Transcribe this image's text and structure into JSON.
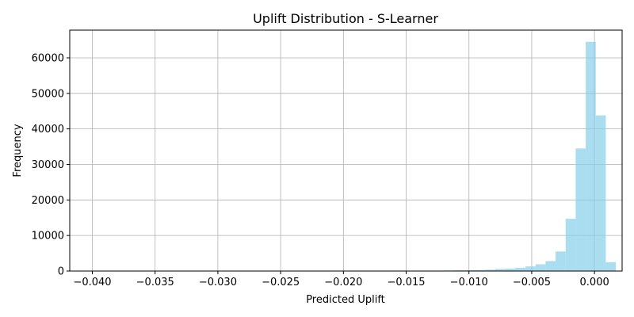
{
  "chart_data": {
    "type": "histogram",
    "title": "Uplift Distribution - S-Learner",
    "xlabel": "Predicted Uplift",
    "ylabel": "Frequency",
    "xlim": [
      -0.0418,
      0.0022
    ],
    "ylim": [
      0,
      67800
    ],
    "x_ticks": [
      -0.04,
      -0.035,
      -0.03,
      -0.025,
      -0.02,
      -0.015,
      -0.01,
      -0.005,
      0.0
    ],
    "x_tick_labels": [
      "−0.040",
      "−0.035",
      "−0.030",
      "−0.025",
      "−0.020",
      "−0.015",
      "−0.010",
      "−0.005",
      "0.000"
    ],
    "y_ticks": [
      0,
      10000,
      20000,
      30000,
      40000,
      50000,
      60000
    ],
    "y_tick_labels": [
      "0",
      "10000",
      "20000",
      "30000",
      "40000",
      "50000",
      "60000"
    ],
    "grid": true,
    "bar_color": "#87ceeb",
    "bar_opacity": 0.7,
    "bin_edges_start": -0.0399,
    "bin_width": 0.0008,
    "values": [
      60,
      0,
      0,
      0,
      0,
      0,
      0,
      0,
      0,
      0,
      0,
      0,
      0,
      0,
      0,
      0,
      0,
      0,
      0,
      0,
      0,
      60,
      0,
      20,
      20,
      20,
      30,
      40,
      40,
      40,
      40,
      60,
      80,
      100,
      100,
      150,
      200,
      250,
      300,
      400,
      600,
      700,
      900,
      1300,
      1900,
      2800,
      5500,
      14700,
      34500,
      64500,
      43800,
      2500
    ]
  }
}
